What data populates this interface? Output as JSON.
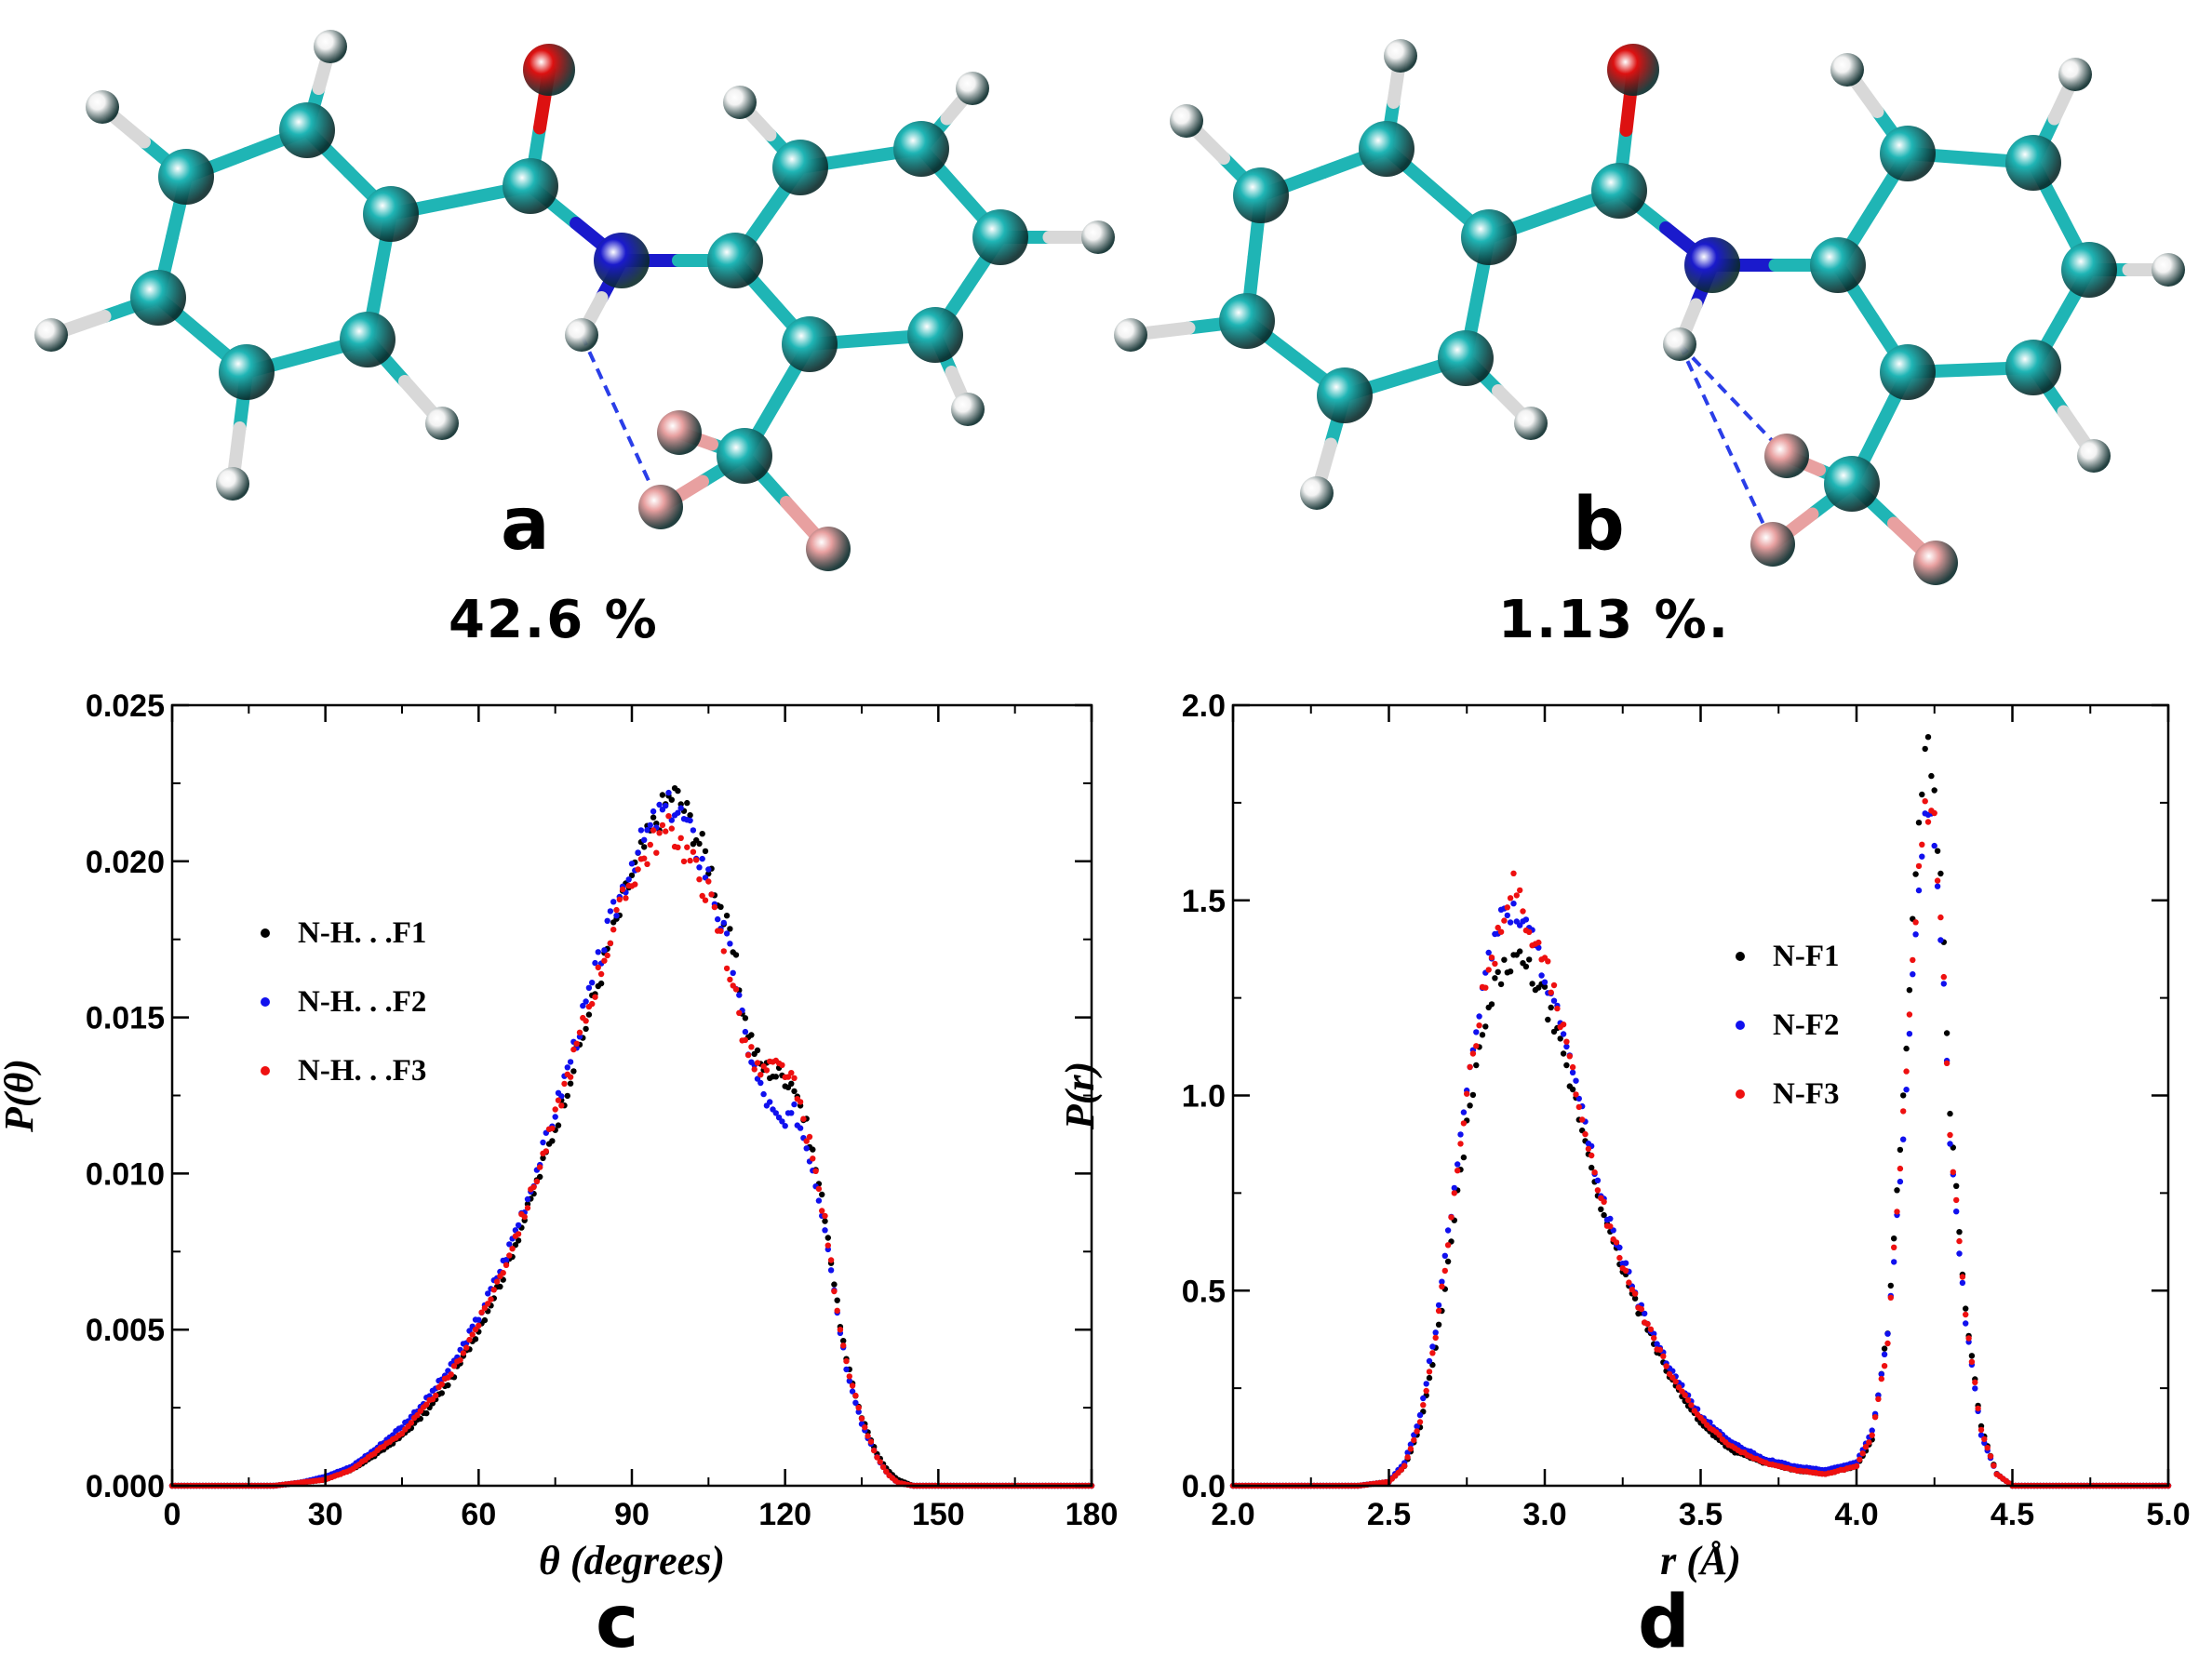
{
  "panels": {
    "a": {
      "letter": "a",
      "percentage": "42.6 %"
    },
    "b": {
      "letter": "b",
      "percentage": "1.13 %."
    },
    "c": {
      "letter": "c"
    },
    "d": {
      "letter": "d"
    }
  },
  "colors": {
    "carbon": "#1fb5b5",
    "nitrogen": "#1a1acc",
    "oxygen": "#dd1111",
    "hydrogen": "#f2f2f2",
    "fluorine": "#e8a0a0",
    "hbond": "#2a3ee8",
    "series_F1": "#000000",
    "series_F2": "#1010ee",
    "series_F3": "#ee1010"
  },
  "chart_data": [
    {
      "type": "scatter",
      "panel": "c",
      "xlabel": "θ (degrees)",
      "ylabel": "P(θ)",
      "xlim": [
        0,
        180
      ],
      "ylim": [
        0,
        0.025
      ],
      "xticks": [
        "0",
        "30",
        "60",
        "90",
        "120",
        "150",
        "180"
      ],
      "yticks": [
        "0.000",
        "0.005",
        "0.010",
        "0.015",
        "0.020",
        "0.025"
      ],
      "legend_position": "middle-left",
      "series": [
        {
          "name": "N-H. . .F1",
          "color": "#000000",
          "x": [
            20,
            25,
            30,
            35,
            40,
            45,
            50,
            55,
            60,
            65,
            70,
            75,
            80,
            85,
            90,
            95,
            98,
            100,
            105,
            110,
            112,
            115,
            118,
            120,
            122,
            125,
            128,
            130,
            132,
            135,
            138,
            140,
            142,
            145,
            150,
            160
          ],
          "y": [
            0.0,
            0.0001,
            0.0002,
            0.0005,
            0.001,
            0.0016,
            0.0024,
            0.0035,
            0.005,
            0.0068,
            0.009,
            0.0115,
            0.0142,
            0.017,
            0.0196,
            0.0214,
            0.0222,
            0.0218,
            0.02,
            0.017,
            0.015,
            0.0135,
            0.0132,
            0.0131,
            0.0128,
            0.011,
            0.0085,
            0.006,
            0.004,
            0.0022,
            0.001,
            0.0005,
            0.0002,
            0.0,
            0.0,
            0.0
          ]
        },
        {
          "name": "N-H. . .F2",
          "color": "#1010ee",
          "x": [
            20,
            25,
            30,
            35,
            40,
            45,
            50,
            55,
            60,
            65,
            70,
            75,
            80,
            85,
            90,
            95,
            98,
            100,
            105,
            110,
            112,
            115,
            118,
            120,
            122,
            125,
            128,
            130,
            132,
            135,
            138,
            140,
            142,
            145,
            150,
            160
          ],
          "y": [
            0.0,
            0.0001,
            0.0003,
            0.0006,
            0.0012,
            0.0019,
            0.0028,
            0.0039,
            0.0054,
            0.0072,
            0.0094,
            0.012,
            0.0148,
            0.0176,
            0.02,
            0.0214,
            0.0218,
            0.0214,
            0.0195,
            0.0165,
            0.0145,
            0.0128,
            0.0118,
            0.0115,
            0.012,
            0.0105,
            0.0082,
            0.0058,
            0.0038,
            0.002,
            0.0009,
            0.0004,
            0.0001,
            0.0,
            0.0,
            0.0
          ]
        },
        {
          "name": "N-H. . .F3",
          "color": "#ee1010",
          "x": [
            20,
            25,
            30,
            35,
            40,
            45,
            50,
            55,
            60,
            65,
            70,
            75,
            80,
            85,
            90,
            95,
            98,
            100,
            105,
            110,
            112,
            115,
            118,
            120,
            122,
            125,
            128,
            130,
            132,
            135,
            138,
            140,
            142,
            145,
            150,
            160
          ],
          "y": [
            0.0,
            0.0001,
            0.0002,
            0.0005,
            0.0011,
            0.0017,
            0.0026,
            0.0037,
            0.0052,
            0.007,
            0.0092,
            0.0118,
            0.0145,
            0.0172,
            0.0195,
            0.0208,
            0.021,
            0.0205,
            0.019,
            0.016,
            0.0142,
            0.0132,
            0.0134,
            0.0133,
            0.0127,
            0.0108,
            0.0083,
            0.0059,
            0.0039,
            0.0021,
            0.0009,
            0.0004,
            0.0001,
            0.0,
            0.0,
            0.0
          ]
        }
      ]
    },
    {
      "type": "scatter",
      "panel": "d",
      "xlabel": "r (Å)",
      "ylabel": "P(r)",
      "xlim": [
        2.0,
        5.0
      ],
      "ylim": [
        0,
        2.0
      ],
      "xticks": [
        "2.0",
        "2.5",
        "3.0",
        "3.5",
        "4.0",
        "4.5",
        "5.0"
      ],
      "yticks": [
        "0.0",
        "0.5",
        "1.0",
        "1.5",
        "2.0"
      ],
      "legend_position": "middle-right",
      "series": [
        {
          "name": "N-F1",
          "color": "#000000",
          "x": [
            2.0,
            2.4,
            2.5,
            2.55,
            2.6,
            2.65,
            2.7,
            2.75,
            2.8,
            2.85,
            2.9,
            2.95,
            3.0,
            3.05,
            3.1,
            3.15,
            3.2,
            3.3,
            3.4,
            3.5,
            3.6,
            3.7,
            3.8,
            3.9,
            4.0,
            4.05,
            4.1,
            4.15,
            4.2,
            4.22,
            4.25,
            4.28,
            4.3,
            4.35,
            4.4,
            4.45,
            4.5,
            5.0
          ],
          "y": [
            0,
            0,
            0.01,
            0.05,
            0.15,
            0.35,
            0.62,
            0.92,
            1.15,
            1.3,
            1.35,
            1.32,
            1.25,
            1.12,
            0.98,
            0.82,
            0.66,
            0.45,
            0.28,
            0.16,
            0.09,
            0.06,
            0.04,
            0.03,
            0.05,
            0.12,
            0.4,
            1.0,
            1.7,
            1.92,
            1.8,
            1.4,
            0.95,
            0.45,
            0.15,
            0.03,
            0.0,
            0.0
          ]
        },
        {
          "name": "N-F2",
          "color": "#1010ee",
          "x": [
            2.0,
            2.4,
            2.5,
            2.55,
            2.6,
            2.65,
            2.7,
            2.75,
            2.8,
            2.85,
            2.9,
            2.95,
            3.0,
            3.05,
            3.1,
            3.15,
            3.2,
            3.3,
            3.4,
            3.5,
            3.6,
            3.7,
            3.8,
            3.9,
            4.0,
            4.05,
            4.1,
            4.15,
            4.2,
            4.22,
            4.25,
            4.28,
            4.3,
            4.35,
            4.4,
            4.45,
            4.5,
            5.0
          ],
          "y": [
            0,
            0,
            0.01,
            0.06,
            0.18,
            0.4,
            0.7,
            1.02,
            1.28,
            1.44,
            1.48,
            1.42,
            1.32,
            1.18,
            1.02,
            0.85,
            0.69,
            0.47,
            0.3,
            0.18,
            0.11,
            0.07,
            0.05,
            0.04,
            0.06,
            0.14,
            0.38,
            0.9,
            1.55,
            1.72,
            1.68,
            1.3,
            0.88,
            0.42,
            0.13,
            0.03,
            0.0,
            0.0
          ]
        },
        {
          "name": "N-F3",
          "color": "#ee1010",
          "x": [
            2.0,
            2.4,
            2.5,
            2.55,
            2.6,
            2.65,
            2.7,
            2.75,
            2.8,
            2.85,
            2.9,
            2.95,
            3.0,
            3.05,
            3.1,
            3.15,
            3.2,
            3.3,
            3.4,
            3.5,
            3.6,
            3.7,
            3.8,
            3.9,
            4.0,
            4.05,
            4.1,
            4.15,
            4.2,
            4.22,
            4.25,
            4.28,
            4.3,
            4.35,
            4.4,
            4.45,
            4.5,
            5.0
          ],
          "y": [
            0,
            0,
            0.01,
            0.05,
            0.16,
            0.38,
            0.68,
            1.0,
            1.25,
            1.4,
            1.56,
            1.42,
            1.35,
            1.2,
            1.02,
            0.84,
            0.68,
            0.46,
            0.29,
            0.17,
            0.1,
            0.06,
            0.04,
            0.03,
            0.05,
            0.13,
            0.36,
            0.95,
            1.6,
            1.75,
            1.7,
            1.32,
            0.9,
            0.44,
            0.14,
            0.03,
            0.0,
            0.0
          ]
        }
      ]
    }
  ]
}
